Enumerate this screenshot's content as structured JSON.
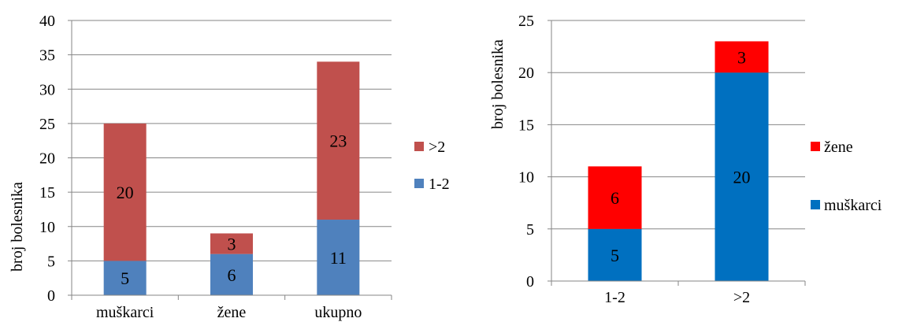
{
  "chart_data": [
    {
      "type": "bar",
      "stacked": true,
      "categories": [
        "muškarci",
        "žene",
        "ukupno"
      ],
      "series": [
        {
          "name": "1-2",
          "values": [
            5,
            6,
            11
          ],
          "color": "#4f81bd"
        },
        {
          "name": ">2",
          "values": [
            20,
            3,
            23
          ],
          "color": "#c0504d"
        }
      ],
      "title": "",
      "xlabel": "",
      "ylabel": "broj bolesnika",
      "ylim": [
        0,
        40
      ],
      "yticks": [
        "0",
        "5",
        "10",
        "15",
        "20",
        "25",
        "30",
        "35",
        "40"
      ],
      "grid": true,
      "legend": "right",
      "legend_order": [
        ">2",
        "1-2"
      ]
    },
    {
      "type": "bar",
      "stacked": true,
      "categories": [
        "1-2",
        ">2"
      ],
      "series": [
        {
          "name": "muškarci",
          "values": [
            5,
            20
          ],
          "color": "#0070c0"
        },
        {
          "name": "žene",
          "values": [
            6,
            3
          ],
          "color": "#ff0000"
        }
      ],
      "title": "",
      "xlabel": "",
      "ylabel": "broj bolesnika",
      "ylim": [
        0,
        25
      ],
      "yticks": [
        "0",
        "5",
        "10",
        "15",
        "20",
        "25"
      ],
      "grid": true,
      "legend": "right",
      "legend_order": [
        "žene",
        "muškarci"
      ]
    }
  ]
}
